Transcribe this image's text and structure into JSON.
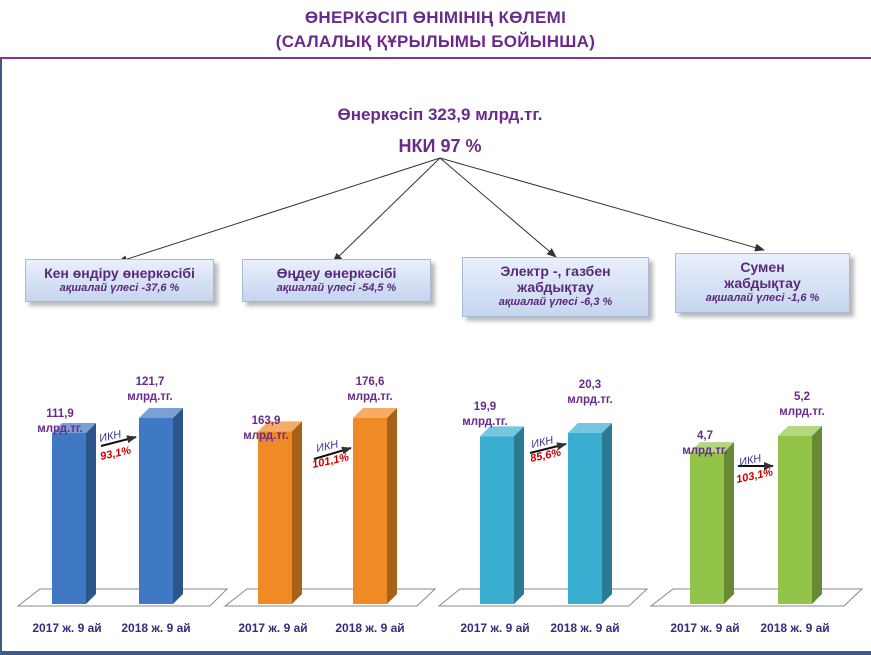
{
  "header": {
    "title_line1": "ӨНЕРКӘСІП ӨНІМІНІҢ КӨЛЕМІ",
    "title_line2": "(САЛАЛЫҚ ҚҰРЫЛЫМЫ БОЙЫНША)"
  },
  "summary": {
    "total": "Өнеркәсіп 323,9 млрд.тг.",
    "nki": "НКИ 97 %"
  },
  "colors": {
    "title": "#6a2a8c",
    "ikn_percent": "#cc0000"
  },
  "sectors": [
    {
      "name": "Кен өндіру өнеркәсібі",
      "share": "ақшалай үлесі -37,6 %"
    },
    {
      "name": "Өңдеу өнеркәсібі",
      "share": "ақшалай үлесі -54,5 %"
    },
    {
      "name": "Электр -, газбен жабдықтау",
      "share": "ақшалай үлесі -6,3 %"
    },
    {
      "name": "Сумен жабдықтау",
      "share": "ақшалай үлесі -1,6 %"
    }
  ],
  "chart_data": [
    {
      "type": "bar",
      "categories": [
        "2017 ж. 9 ай",
        "2018 ж. 9 ай"
      ],
      "values": [
        111.9,
        121.7
      ],
      "value_labels": [
        "111,9",
        "121,7"
      ],
      "unit": "млрд.тг.",
      "ikn_label": "ИКН",
      "ikn_value": "93,1%",
      "color": "#3f79c4"
    },
    {
      "type": "bar",
      "categories": [
        "2017 ж. 9 ай",
        "2018 ж. 9 ай"
      ],
      "values": [
        163.9,
        176.6
      ],
      "value_labels": [
        "163,9",
        "176,6"
      ],
      "unit": "млрд.тг.",
      "ikn_label": "ИКН",
      "ikn_value": "101,1%",
      "color": "#f08a24"
    },
    {
      "type": "bar",
      "categories": [
        "2017 ж. 9 ай",
        "2018 ж. 9 ай"
      ],
      "values": [
        19.9,
        20.3
      ],
      "value_labels": [
        "19,9",
        "20,3"
      ],
      "unit": "млрд.тг.",
      "ikn_label": "ИКН",
      "ikn_value": "85,6%",
      "color": "#3aaed0"
    },
    {
      "type": "bar",
      "categories": [
        "2017 ж. 9 ай",
        "2018 ж. 9 ай"
      ],
      "values": [
        4.7,
        5.2
      ],
      "value_labels": [
        "4,7",
        "5,2"
      ],
      "unit": "млрд.тг.",
      "ikn_label": "ИКН",
      "ikn_value": "103,1%",
      "color": "#93c44a"
    }
  ]
}
